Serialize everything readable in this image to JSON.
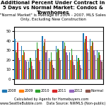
{
  "chart_data": {
    "type": "bar",
    "title": "Additional Percent Under Contract in 5 Days vs Normal Market: Condos & Townhomes",
    "subtitle": "\"Normal Market\" is Average of 2004 - 2007. MLS Sales Only, Excluding New Construction",
    "annotations": [
      "Calculated by Agents for Homebuyers.com    www.SeattleBubble.com    Data Source: NWMLS (Non-public)"
    ],
    "categories": [
      null,
      null,
      null,
      null,
      null,
      null,
      null,
      null,
      null,
      null,
      null,
      null,
      null
    ],
    "series": [
      {
        "name": "2008",
        "values": [
          42,
          35,
          18,
          30,
          45,
          22,
          35,
          40,
          28,
          25,
          48,
          42,
          30
        ]
      },
      {
        "name": "2009",
        "values": [
          30,
          25,
          12,
          22,
          35,
          18,
          28,
          32,
          20,
          18,
          38,
          35,
          22
        ]
      },
      {
        "name": "2010",
        "values": [
          28,
          30,
          22,
          38,
          38,
          28,
          32,
          38,
          32,
          22,
          42,
          40,
          28
        ]
      },
      {
        "name": "2011",
        "values": [
          38,
          28,
          18,
          32,
          42,
          20,
          30,
          35,
          25,
          20,
          45,
          38,
          25
        ]
      },
      {
        "name": "2012",
        "values": [
          22,
          20,
          14,
          20,
          28,
          15,
          22,
          28,
          18,
          15,
          32,
          30,
          20
        ]
      },
      {
        "name": "Normal",
        "values": [
          20,
          18,
          10,
          18,
          30,
          12,
          20,
          25,
          15,
          12,
          28,
          25,
          18
        ]
      }
    ],
    "ylim": [
      -5,
      55
    ],
    "yticks": [
      0,
      10,
      20,
      30,
      40,
      50
    ],
    "grid": true,
    "legend": "lower center"
  }
}
